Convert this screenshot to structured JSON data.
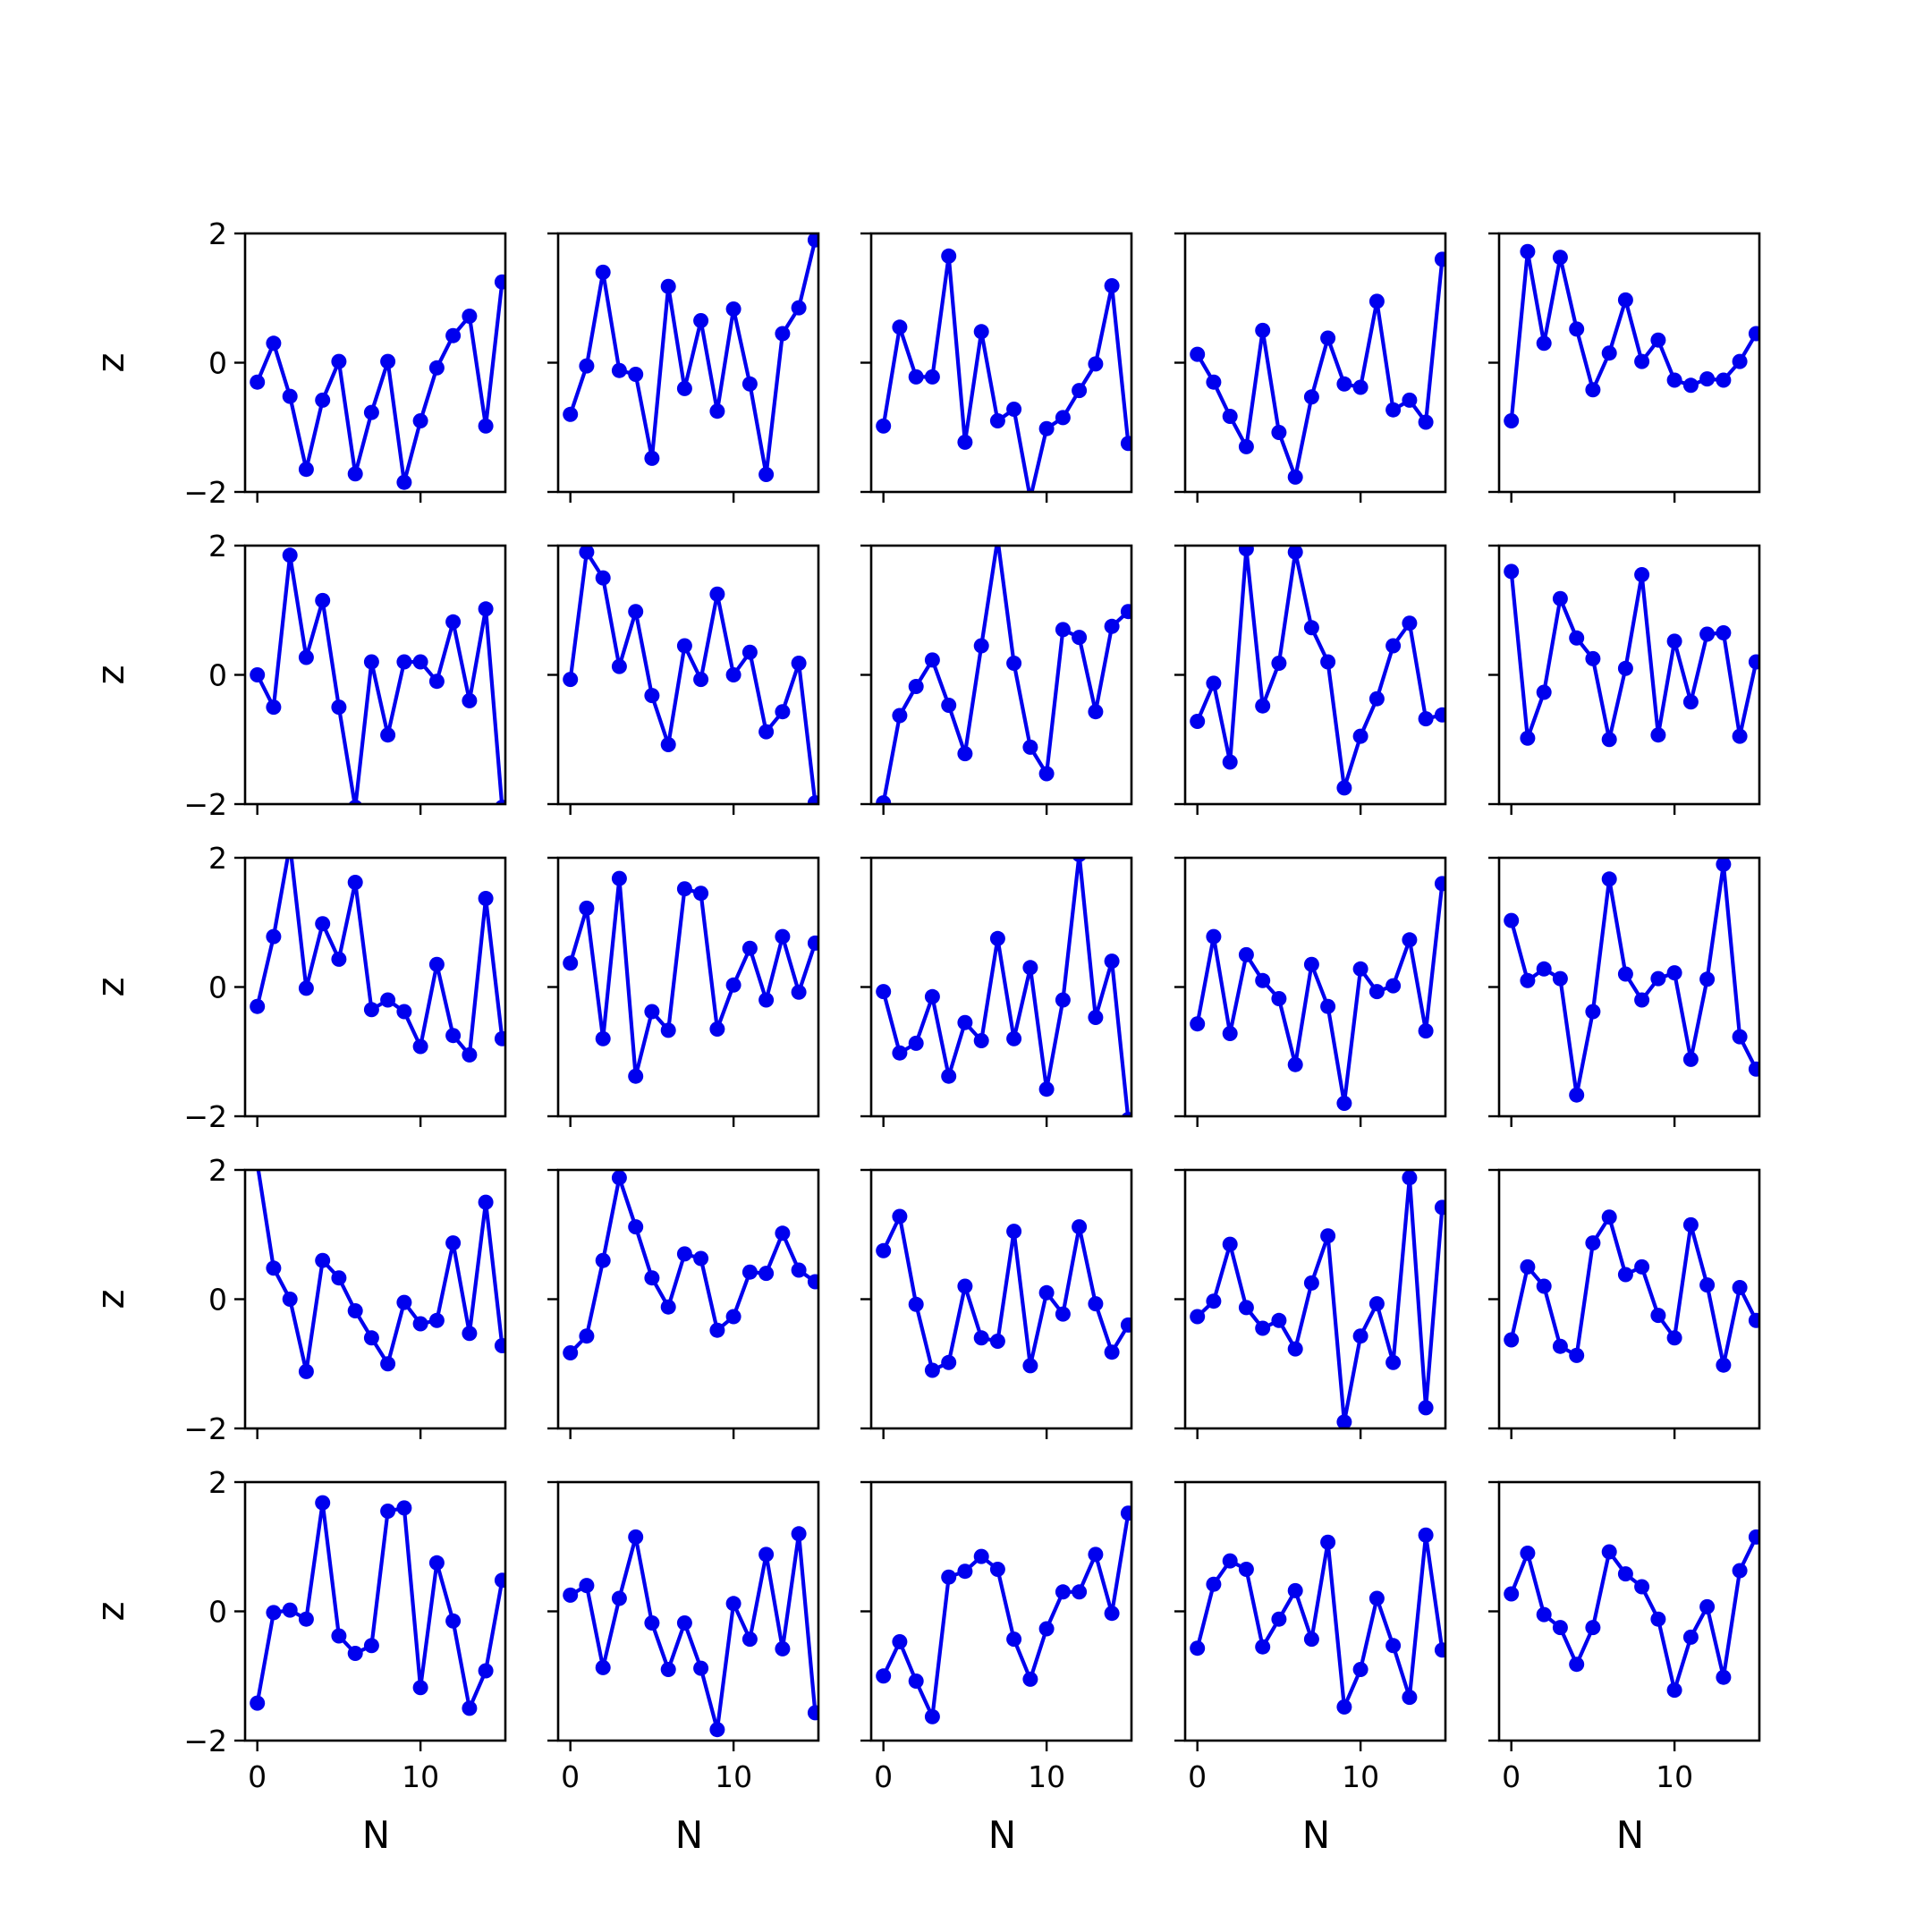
{
  "colors": {
    "line": "#0000ee",
    "axes": "#000000",
    "background": "#ffffff"
  },
  "axis_labels": {
    "x": "N",
    "y": "z"
  },
  "chart_data": {
    "type": "line",
    "layout": "5x5 grid of small multiples, shared axes",
    "xlabel": "N",
    "ylabel": "z",
    "xlim": [
      -0.75,
      15.2
    ],
    "ylim": [
      -2,
      2
    ],
    "x_ticks": [
      0,
      10
    ],
    "x_tick_labels": [
      "0",
      "10"
    ],
    "y_ticks": [
      -2,
      0,
      2
    ],
    "y_tick_labels": [
      "−2",
      "0",
      "2"
    ],
    "x": [
      0,
      1,
      2,
      3,
      4,
      5,
      6,
      7,
      8,
      9,
      10,
      11,
      12,
      13,
      14,
      15
    ],
    "marker": "circle",
    "panels": [
      [
        [
          -0.3,
          0.3,
          -0.52,
          -1.65,
          -0.58,
          0.02,
          -1.72,
          -0.77,
          0.02,
          -1.85,
          -0.9,
          -0.08,
          0.42,
          0.72,
          -0.98,
          1.25
        ],
        [
          -0.8,
          -0.05,
          1.4,
          -0.12,
          -0.18,
          -1.48,
          1.18,
          -0.4,
          0.65,
          -0.75,
          0.83,
          -0.33,
          -1.73,
          0.45,
          0.85,
          1.9
        ],
        [
          -0.98,
          0.55,
          -0.22,
          -0.22,
          1.65,
          -1.23,
          0.48,
          -0.9,
          -0.72,
          -2.1,
          -1.02,
          -0.85,
          -0.43,
          -0.02,
          1.19,
          -1.25
        ],
        [
          0.13,
          -0.3,
          -0.83,
          -1.3,
          0.5,
          -1.08,
          -1.77,
          -0.53,
          0.38,
          -0.33,
          -0.38,
          0.95,
          -0.73,
          -0.58,
          -0.92,
          1.6
        ]
      ],
      [
        [
          0.0,
          -0.5,
          1.85,
          0.27,
          1.15,
          -0.5,
          -2.05,
          0.2,
          -0.93,
          0.2,
          0.2,
          -0.1,
          0.82,
          -0.4,
          1.02,
          -2.05
        ],
        [
          -0.07,
          1.9,
          1.5,
          0.13,
          0.98,
          -0.32,
          -1.08,
          0.45,
          -0.07,
          1.25,
          0.0,
          0.35,
          -0.88,
          -0.57,
          0.18,
          -1.98
        ],
        [
          -1.98,
          -0.63,
          -0.18,
          0.23,
          -0.47,
          -1.22,
          0.45,
          2.1,
          0.18,
          -1.12,
          -1.53,
          0.7,
          0.58,
          -0.57,
          0.75,
          0.98
        ],
        [
          -0.72,
          -0.13,
          -1.35,
          1.95,
          -0.48,
          0.18,
          1.9,
          0.73,
          0.2,
          -1.75,
          -0.95,
          -0.37,
          0.45,
          0.8,
          -0.68,
          -0.62
        ]
      ],
      [
        [
          -0.3,
          0.78,
          2.2,
          -0.02,
          0.98,
          0.43,
          1.62,
          -0.35,
          -0.2,
          -0.38,
          -0.92,
          0.35,
          -0.75,
          -1.05,
          1.37,
          -0.8
        ],
        [
          0.37,
          1.22,
          -0.8,
          1.68,
          -1.38,
          -0.38,
          -0.67,
          1.52,
          1.45,
          -0.65,
          0.03,
          0.6,
          -0.2,
          0.78,
          -0.08,
          0.68
        ],
        [
          -0.07,
          -1.02,
          -0.87,
          -0.15,
          -1.38,
          -0.55,
          -0.83,
          0.75,
          -0.8,
          0.3,
          -1.58,
          -0.2,
          2.05,
          -0.47,
          0.4,
          -2.05
        ],
        [
          -0.57,
          0.78,
          -0.72,
          0.5,
          0.1,
          -0.18,
          -1.2,
          0.35,
          -0.3,
          -1.8,
          0.28,
          -0.07,
          0.02,
          0.73,
          -0.68,
          1.6
        ]
      ],
      [
        [
          2.1,
          0.48,
          0.0,
          -1.12,
          0.6,
          0.33,
          -0.18,
          -0.6,
          -1.0,
          -0.05,
          -0.38,
          -0.33,
          0.87,
          -0.53,
          1.5,
          -0.72
        ],
        [
          -0.83,
          -0.57,
          0.6,
          1.88,
          1.12,
          0.33,
          -0.12,
          0.7,
          0.63,
          -0.48,
          -0.27,
          0.42,
          0.4,
          1.02,
          0.45,
          0.27
        ],
        [
          0.75,
          1.28,
          -0.08,
          -1.1,
          -0.98,
          0.2,
          -0.6,
          -0.65,
          1.05,
          -1.03,
          0.1,
          -0.23,
          1.12,
          -0.07,
          -0.82,
          -0.4
        ],
        [
          -0.27,
          -0.03,
          0.85,
          -0.13,
          -0.45,
          -0.33,
          -0.77,
          0.25,
          0.98,
          -1.9,
          -0.57,
          -0.07,
          -0.98,
          1.88,
          -1.68,
          1.42
        ]
      ],
      [
        [
          -1.42,
          -0.02,
          0.02,
          -0.12,
          1.68,
          -0.38,
          -0.65,
          -0.53,
          1.55,
          1.6,
          -1.18,
          0.75,
          -0.15,
          -1.5,
          -0.92,
          0.48
        ],
        [
          0.25,
          0.4,
          -0.87,
          0.2,
          1.15,
          -0.18,
          -0.9,
          -0.18,
          -0.88,
          -1.83,
          0.12,
          -0.43,
          0.88,
          -0.58,
          1.2,
          -1.57
        ],
        [
          -1.0,
          -0.47,
          -1.08,
          -1.63,
          0.53,
          0.62,
          0.85,
          0.65,
          -0.43,
          -1.05,
          -0.27,
          0.3,
          0.3,
          0.88,
          -0.03,
          1.52
        ],
        [
          -0.57,
          0.42,
          0.78,
          0.65,
          -0.55,
          -0.12,
          0.32,
          -0.43,
          1.07,
          -1.48,
          -0.9,
          0.2,
          -0.53,
          -1.33,
          1.18,
          -0.6
        ]
      ]
    ],
    "panels_col5": [
      [
        -0.9,
        1.72,
        0.3,
        1.63,
        0.52,
        -0.42,
        0.15,
        0.97,
        0.02,
        0.35,
        -0.27,
        -0.35,
        -0.25,
        -0.27,
        0.02,
        0.45
      ],
      [
        1.6,
        -0.98,
        -0.27,
        1.18,
        0.57,
        0.25,
        -1.0,
        0.1,
        1.55,
        -0.93,
        0.52,
        -0.42,
        0.63,
        0.65,
        -0.95,
        0.2
      ],
      [
        1.03,
        0.1,
        0.28,
        0.13,
        -1.67,
        -0.38,
        1.67,
        0.2,
        -0.2,
        0.13,
        0.22,
        -1.12,
        0.12,
        1.9,
        -0.77,
        -1.27
      ],
      [
        -0.63,
        0.5,
        0.2,
        -0.73,
        -0.87,
        0.87,
        1.27,
        0.38,
        0.5,
        -0.25,
        -0.6,
        1.15,
        0.22,
        -1.02,
        0.18,
        -0.33
      ],
      [
        0.27,
        0.9,
        -0.05,
        -0.25,
        -0.82,
        -0.25,
        0.92,
        0.58,
        0.38,
        -0.12,
        -1.22,
        -0.4,
        0.07,
        -1.02,
        0.63,
        1.15
      ]
    ]
  }
}
